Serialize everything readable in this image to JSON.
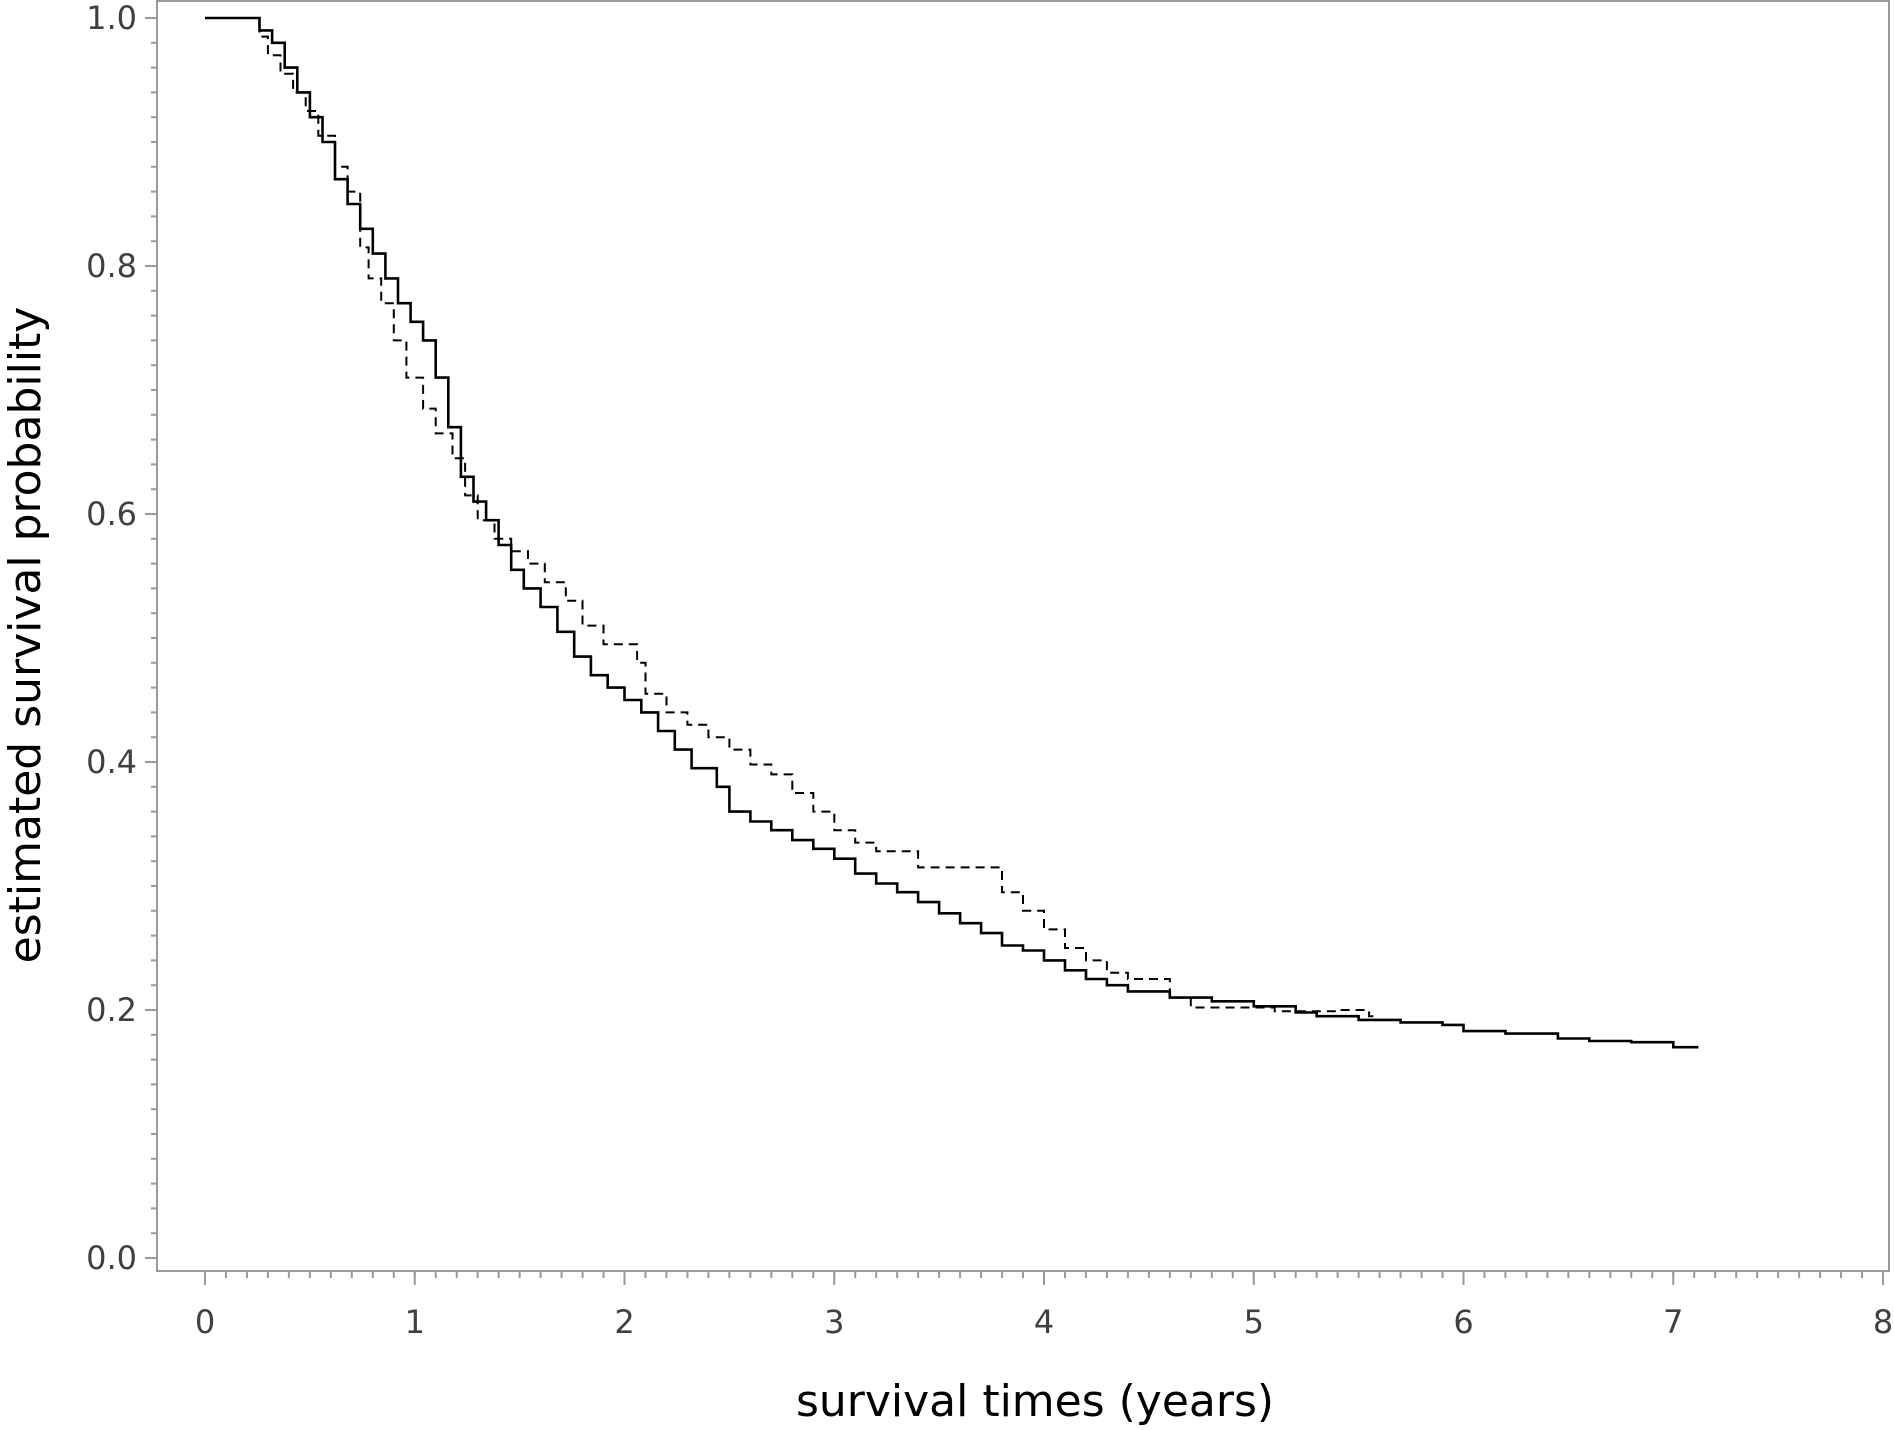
{
  "chart_data": {
    "type": "line",
    "title": "",
    "xlabel": "survival times (years)",
    "ylabel": "estimated survival probability",
    "xlim": [
      0,
      8
    ],
    "ylim": [
      0,
      1
    ],
    "x_ticks": [
      0,
      1,
      2,
      3,
      4,
      5,
      6,
      7,
      8
    ],
    "x_tick_labels": [
      "0",
      "1",
      "2",
      "3",
      "4",
      "5",
      "6",
      "7",
      "8"
    ],
    "x_minor_step": 0.1,
    "y_ticks": [
      0,
      0.2,
      0.4,
      0.6,
      0.8,
      1.0
    ],
    "y_tick_labels": [
      "0.0",
      "0.2",
      "0.4",
      "0.6",
      "0.8",
      "1.0"
    ],
    "y_minor_step": 0.02,
    "grid": false,
    "legend": "none",
    "step": true,
    "series": [
      {
        "style": "solid",
        "color": "#000000",
        "points": [
          [
            0,
            1.0
          ],
          [
            0.22,
            1.0
          ],
          [
            0.26,
            0.99
          ],
          [
            0.32,
            0.98
          ],
          [
            0.38,
            0.96
          ],
          [
            0.44,
            0.94
          ],
          [
            0.5,
            0.92
          ],
          [
            0.56,
            0.9
          ],
          [
            0.62,
            0.87
          ],
          [
            0.68,
            0.85
          ],
          [
            0.74,
            0.83
          ],
          [
            0.8,
            0.81
          ],
          [
            0.86,
            0.79
          ],
          [
            0.92,
            0.77
          ],
          [
            0.98,
            0.755
          ],
          [
            1.04,
            0.74
          ],
          [
            1.1,
            0.71
          ],
          [
            1.16,
            0.67
          ],
          [
            1.22,
            0.63
          ],
          [
            1.28,
            0.61
          ],
          [
            1.34,
            0.595
          ],
          [
            1.4,
            0.575
          ],
          [
            1.46,
            0.555
          ],
          [
            1.52,
            0.54
          ],
          [
            1.6,
            0.525
          ],
          [
            1.68,
            0.505
          ],
          [
            1.76,
            0.485
          ],
          [
            1.84,
            0.47
          ],
          [
            1.92,
            0.46
          ],
          [
            2.0,
            0.45
          ],
          [
            2.08,
            0.44
          ],
          [
            2.16,
            0.425
          ],
          [
            2.24,
            0.41
          ],
          [
            2.32,
            0.395
          ],
          [
            2.44,
            0.38
          ],
          [
            2.5,
            0.36
          ],
          [
            2.6,
            0.352
          ],
          [
            2.7,
            0.345
          ],
          [
            2.8,
            0.337
          ],
          [
            2.9,
            0.33
          ],
          [
            3.0,
            0.322
          ],
          [
            3.1,
            0.31
          ],
          [
            3.2,
            0.302
          ],
          [
            3.3,
            0.295
          ],
          [
            3.4,
            0.287
          ],
          [
            3.5,
            0.278
          ],
          [
            3.6,
            0.27
          ],
          [
            3.7,
            0.262
          ],
          [
            3.8,
            0.252
          ],
          [
            3.9,
            0.248
          ],
          [
            4.0,
            0.24
          ],
          [
            4.1,
            0.232
          ],
          [
            4.2,
            0.225
          ],
          [
            4.3,
            0.22
          ],
          [
            4.4,
            0.215
          ],
          [
            4.6,
            0.21
          ],
          [
            4.8,
            0.207
          ],
          [
            5.0,
            0.203
          ],
          [
            5.2,
            0.198
          ],
          [
            5.3,
            0.195
          ],
          [
            5.5,
            0.192
          ],
          [
            5.7,
            0.19
          ],
          [
            5.9,
            0.188
          ],
          [
            6.0,
            0.183
          ],
          [
            6.2,
            0.181
          ],
          [
            6.45,
            0.177
          ],
          [
            6.6,
            0.175
          ],
          [
            6.8,
            0.174
          ],
          [
            7.0,
            0.17
          ],
          [
            7.12,
            0.17
          ]
        ]
      },
      {
        "style": "dashed",
        "color": "#000000",
        "points": [
          [
            0,
            1.0
          ],
          [
            0.22,
            1.0
          ],
          [
            0.26,
            0.985
          ],
          [
            0.3,
            0.97
          ],
          [
            0.36,
            0.955
          ],
          [
            0.42,
            0.94
          ],
          [
            0.48,
            0.925
          ],
          [
            0.54,
            0.905
          ],
          [
            0.62,
            0.88
          ],
          [
            0.68,
            0.86
          ],
          [
            0.74,
            0.815
          ],
          [
            0.78,
            0.79
          ],
          [
            0.84,
            0.77
          ],
          [
            0.9,
            0.74
          ],
          [
            0.96,
            0.71
          ],
          [
            1.04,
            0.685
          ],
          [
            1.1,
            0.665
          ],
          [
            1.18,
            0.645
          ],
          [
            1.24,
            0.615
          ],
          [
            1.3,
            0.595
          ],
          [
            1.38,
            0.58
          ],
          [
            1.46,
            0.57
          ],
          [
            1.54,
            0.56
          ],
          [
            1.62,
            0.545
          ],
          [
            1.72,
            0.53
          ],
          [
            1.8,
            0.51
          ],
          [
            1.9,
            0.495
          ],
          [
            2.06,
            0.48
          ],
          [
            2.1,
            0.455
          ],
          [
            2.2,
            0.44
          ],
          [
            2.3,
            0.43
          ],
          [
            2.4,
            0.42
          ],
          [
            2.5,
            0.41
          ],
          [
            2.6,
            0.398
          ],
          [
            2.7,
            0.39
          ],
          [
            2.8,
            0.375
          ],
          [
            2.9,
            0.36
          ],
          [
            3.0,
            0.345
          ],
          [
            3.1,
            0.335
          ],
          [
            3.2,
            0.328
          ],
          [
            3.4,
            0.315
          ],
          [
            3.8,
            0.295
          ],
          [
            3.9,
            0.28
          ],
          [
            4.0,
            0.265
          ],
          [
            4.1,
            0.25
          ],
          [
            4.2,
            0.24
          ],
          [
            4.3,
            0.23
          ],
          [
            4.4,
            0.225
          ],
          [
            4.6,
            0.21
          ],
          [
            4.7,
            0.202
          ],
          [
            5.0,
            0.202
          ],
          [
            5.1,
            0.199
          ],
          [
            5.4,
            0.2
          ],
          [
            5.55,
            0.195
          ],
          [
            5.57,
            0.195
          ]
        ]
      }
    ]
  }
}
